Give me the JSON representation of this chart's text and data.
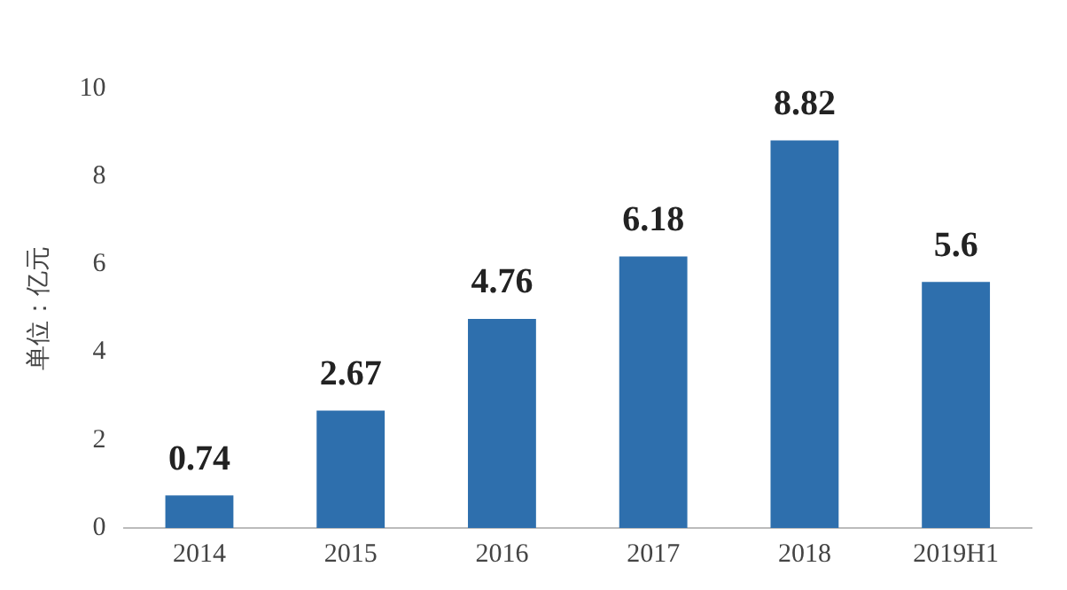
{
  "chart_data": {
    "type": "bar",
    "ylabel": "单位：亿元",
    "categories": [
      "2014",
      "2015",
      "2016",
      "2017",
      "2018",
      "2019H1"
    ],
    "values": [
      0.74,
      2.67,
      4.76,
      6.18,
      8.82,
      5.6
    ],
    "color": "#2e6fad",
    "ylim": [
      0,
      10
    ],
    "yticks": [
      0,
      2,
      4,
      6,
      8,
      10
    ],
    "grid": false,
    "legend": false,
    "data_labels": true
  }
}
